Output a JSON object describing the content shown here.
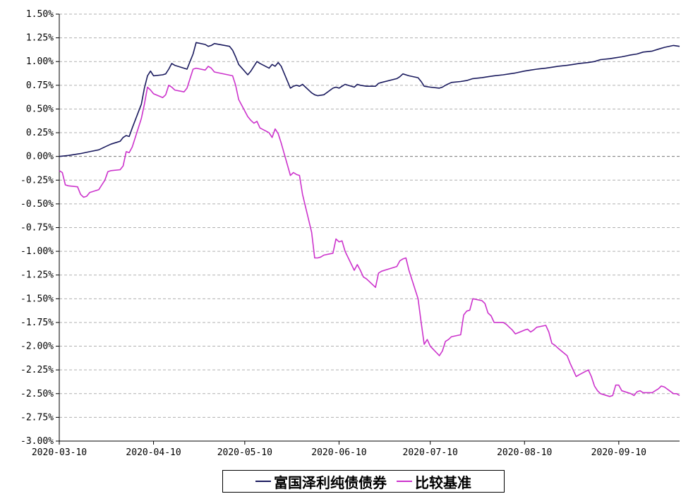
{
  "chart_data": {
    "type": "line",
    "title": "",
    "xlabel": "",
    "ylabel": "",
    "x_start": "2020-03-10",
    "x_end": "2020-09-30",
    "ylim": [
      -3.0,
      1.5
    ],
    "yticks": [
      1.5,
      1.25,
      1.0,
      0.75,
      0.5,
      0.25,
      0.0,
      -0.25,
      -0.5,
      -0.75,
      -1.0,
      -1.25,
      -1.5,
      -1.75,
      -2.0,
      -2.25,
      -2.5,
      -2.75,
      -3.0
    ],
    "ytick_labels": [
      "1.50%",
      "1.25%",
      "1.00%",
      "0.75%",
      "0.50%",
      "0.25%",
      "0.00%",
      "-0.25%",
      "-0.50%",
      "-0.75%",
      "-1.00%",
      "-1.25%",
      "-1.50%",
      "-1.75%",
      "-2.00%",
      "-2.25%",
      "-2.50%",
      "-2.75%",
      "-3.00%"
    ],
    "xticks": [
      "2020-03-10",
      "2020-04-10",
      "2020-05-10",
      "2020-06-10",
      "2020-07-10",
      "2020-08-10",
      "2020-09-10"
    ],
    "grid": true,
    "legend_position": "bottom",
    "series": [
      {
        "name": "富国泽利纯债债券",
        "color": "#1a1a5e",
        "points": [
          [
            "2020-03-10",
            0.0
          ],
          [
            "2020-03-13",
            0.01
          ],
          [
            "2020-03-17",
            0.03
          ],
          [
            "2020-03-20",
            0.05
          ],
          [
            "2020-03-23",
            0.07
          ],
          [
            "2020-03-25",
            0.1
          ],
          [
            "2020-03-27",
            0.13
          ],
          [
            "2020-03-30",
            0.16
          ],
          [
            "2020-03-31",
            0.2
          ],
          [
            "2020-04-01",
            0.22
          ],
          [
            "2020-04-02",
            0.21
          ],
          [
            "2020-04-03",
            0.3
          ],
          [
            "2020-04-06",
            0.55
          ],
          [
            "2020-04-07",
            0.72
          ],
          [
            "2020-04-08",
            0.85
          ],
          [
            "2020-04-09",
            0.9
          ],
          [
            "2020-04-10",
            0.85
          ],
          [
            "2020-04-13",
            0.86
          ],
          [
            "2020-04-14",
            0.87
          ],
          [
            "2020-04-15",
            0.92
          ],
          [
            "2020-04-16",
            0.98
          ],
          [
            "2020-04-17",
            0.96
          ],
          [
            "2020-04-20",
            0.93
          ],
          [
            "2020-04-21",
            0.92
          ],
          [
            "2020-04-22",
            1.0
          ],
          [
            "2020-04-23",
            1.08
          ],
          [
            "2020-04-24",
            1.2
          ],
          [
            "2020-04-27",
            1.18
          ],
          [
            "2020-04-28",
            1.16
          ],
          [
            "2020-04-29",
            1.17
          ],
          [
            "2020-04-30",
            1.19
          ],
          [
            "2020-05-05",
            1.16
          ],
          [
            "2020-05-06",
            1.12
          ],
          [
            "2020-05-07",
            1.05
          ],
          [
            "2020-05-08",
            0.97
          ],
          [
            "2020-05-11",
            0.86
          ],
          [
            "2020-05-12",
            0.9
          ],
          [
            "2020-05-13",
            0.95
          ],
          [
            "2020-05-14",
            1.0
          ],
          [
            "2020-05-15",
            0.98
          ],
          [
            "2020-05-18",
            0.93
          ],
          [
            "2020-05-19",
            0.97
          ],
          [
            "2020-05-20",
            0.95
          ],
          [
            "2020-05-21",
            0.99
          ],
          [
            "2020-05-22",
            0.95
          ],
          [
            "2020-05-25",
            0.72
          ],
          [
            "2020-05-26",
            0.74
          ],
          [
            "2020-05-27",
            0.75
          ],
          [
            "2020-05-28",
            0.74
          ],
          [
            "2020-05-29",
            0.76
          ],
          [
            "2020-06-01",
            0.67
          ],
          [
            "2020-06-02",
            0.65
          ],
          [
            "2020-06-03",
            0.64
          ],
          [
            "2020-06-05",
            0.65
          ],
          [
            "2020-06-08",
            0.72
          ],
          [
            "2020-06-09",
            0.73
          ],
          [
            "2020-06-10",
            0.72
          ],
          [
            "2020-06-11",
            0.74
          ],
          [
            "2020-06-12",
            0.76
          ],
          [
            "2020-06-15",
            0.73
          ],
          [
            "2020-06-16",
            0.76
          ],
          [
            "2020-06-17",
            0.75
          ],
          [
            "2020-06-19",
            0.74
          ],
          [
            "2020-06-22",
            0.74
          ],
          [
            "2020-06-23",
            0.77
          ],
          [
            "2020-06-24",
            0.78
          ],
          [
            "2020-06-29",
            0.82
          ],
          [
            "2020-06-30",
            0.84
          ],
          [
            "2020-07-01",
            0.87
          ],
          [
            "2020-07-03",
            0.85
          ],
          [
            "2020-07-06",
            0.83
          ],
          [
            "2020-07-07",
            0.79
          ],
          [
            "2020-07-08",
            0.74
          ],
          [
            "2020-07-10",
            0.73
          ],
          [
            "2020-07-13",
            0.72
          ],
          [
            "2020-07-14",
            0.73
          ],
          [
            "2020-07-15",
            0.75
          ],
          [
            "2020-07-17",
            0.78
          ],
          [
            "2020-07-20",
            0.79
          ],
          [
            "2020-07-22",
            0.8
          ],
          [
            "2020-07-24",
            0.82
          ],
          [
            "2020-07-27",
            0.83
          ],
          [
            "2020-07-29",
            0.84
          ],
          [
            "2020-07-31",
            0.85
          ],
          [
            "2020-08-03",
            0.86
          ],
          [
            "2020-08-05",
            0.87
          ],
          [
            "2020-08-07",
            0.88
          ],
          [
            "2020-08-10",
            0.9
          ],
          [
            "2020-08-12",
            0.91
          ],
          [
            "2020-08-14",
            0.92
          ],
          [
            "2020-08-17",
            0.93
          ],
          [
            "2020-08-19",
            0.94
          ],
          [
            "2020-08-21",
            0.95
          ],
          [
            "2020-08-24",
            0.96
          ],
          [
            "2020-08-26",
            0.97
          ],
          [
            "2020-08-28",
            0.98
          ],
          [
            "2020-08-31",
            0.99
          ],
          [
            "2020-09-02",
            1.0
          ],
          [
            "2020-09-04",
            1.02
          ],
          [
            "2020-09-07",
            1.03
          ],
          [
            "2020-09-09",
            1.04
          ],
          [
            "2020-09-11",
            1.05
          ],
          [
            "2020-09-14",
            1.07
          ],
          [
            "2020-09-16",
            1.08
          ],
          [
            "2020-09-18",
            1.1
          ],
          [
            "2020-09-21",
            1.11
          ],
          [
            "2020-09-23",
            1.13
          ],
          [
            "2020-09-25",
            1.15
          ],
          [
            "2020-09-28",
            1.17
          ],
          [
            "2020-09-30",
            1.16
          ]
        ]
      },
      {
        "name": "比较基准",
        "color": "#cc33cc",
        "points": [
          [
            "2020-03-10",
            -0.15
          ],
          [
            "2020-03-11",
            -0.17
          ],
          [
            "2020-03-12",
            -0.3
          ],
          [
            "2020-03-13",
            -0.31
          ],
          [
            "2020-03-16",
            -0.32
          ],
          [
            "2020-03-17",
            -0.4
          ],
          [
            "2020-03-18",
            -0.43
          ],
          [
            "2020-03-19",
            -0.42
          ],
          [
            "2020-03-20",
            -0.38
          ],
          [
            "2020-03-23",
            -0.35
          ],
          [
            "2020-03-24",
            -0.3
          ],
          [
            "2020-03-25",
            -0.25
          ],
          [
            "2020-03-26",
            -0.16
          ],
          [
            "2020-03-27",
            -0.15
          ],
          [
            "2020-03-30",
            -0.14
          ],
          [
            "2020-03-31",
            -0.1
          ],
          [
            "2020-04-01",
            0.05
          ],
          [
            "2020-04-02",
            0.04
          ],
          [
            "2020-04-03",
            0.1
          ],
          [
            "2020-04-06",
            0.4
          ],
          [
            "2020-04-07",
            0.55
          ],
          [
            "2020-04-08",
            0.73
          ],
          [
            "2020-04-09",
            0.7
          ],
          [
            "2020-04-10",
            0.66
          ],
          [
            "2020-04-13",
            0.62
          ],
          [
            "2020-04-14",
            0.65
          ],
          [
            "2020-04-15",
            0.75
          ],
          [
            "2020-04-16",
            0.73
          ],
          [
            "2020-04-17",
            0.7
          ],
          [
            "2020-04-20",
            0.68
          ],
          [
            "2020-04-21",
            0.72
          ],
          [
            "2020-04-22",
            0.82
          ],
          [
            "2020-04-23",
            0.92
          ],
          [
            "2020-04-24",
            0.93
          ],
          [
            "2020-04-27",
            0.91
          ],
          [
            "2020-04-28",
            0.95
          ],
          [
            "2020-04-29",
            0.93
          ],
          [
            "2020-04-30",
            0.89
          ],
          [
            "2020-05-06",
            0.85
          ],
          [
            "2020-05-07",
            0.75
          ],
          [
            "2020-05-08",
            0.6
          ],
          [
            "2020-05-11",
            0.42
          ],
          [
            "2020-05-12",
            0.38
          ],
          [
            "2020-05-13",
            0.35
          ],
          [
            "2020-05-14",
            0.37
          ],
          [
            "2020-05-15",
            0.3
          ],
          [
            "2020-05-18",
            0.25
          ],
          [
            "2020-05-19",
            0.2
          ],
          [
            "2020-05-20",
            0.29
          ],
          [
            "2020-05-21",
            0.24
          ],
          [
            "2020-05-22",
            0.14
          ],
          [
            "2020-05-25",
            -0.2
          ],
          [
            "2020-05-26",
            -0.17
          ],
          [
            "2020-05-27",
            -0.19
          ],
          [
            "2020-05-28",
            -0.2
          ],
          [
            "2020-05-29",
            -0.4
          ],
          [
            "2020-06-01",
            -0.8
          ],
          [
            "2020-06-02",
            -1.07
          ],
          [
            "2020-06-03",
            -1.07
          ],
          [
            "2020-06-04",
            -1.06
          ],
          [
            "2020-06-05",
            -1.04
          ],
          [
            "2020-06-08",
            -1.02
          ],
          [
            "2020-06-09",
            -0.87
          ],
          [
            "2020-06-10",
            -0.9
          ],
          [
            "2020-06-11",
            -0.89
          ],
          [
            "2020-06-12",
            -1.0
          ],
          [
            "2020-06-15",
            -1.2
          ],
          [
            "2020-06-16",
            -1.14
          ],
          [
            "2020-06-17",
            -1.2
          ],
          [
            "2020-06-18",
            -1.27
          ],
          [
            "2020-06-19",
            -1.29
          ],
          [
            "2020-06-22",
            -1.38
          ],
          [
            "2020-06-23",
            -1.23
          ],
          [
            "2020-06-24",
            -1.21
          ],
          [
            "2020-06-29",
            -1.16
          ],
          [
            "2020-06-30",
            -1.1
          ],
          [
            "2020-07-01",
            -1.08
          ],
          [
            "2020-07-02",
            -1.07
          ],
          [
            "2020-07-03",
            -1.2
          ],
          [
            "2020-07-06",
            -1.5
          ],
          [
            "2020-07-07",
            -1.75
          ],
          [
            "2020-07-08",
            -1.98
          ],
          [
            "2020-07-09",
            -1.93
          ],
          [
            "2020-07-10",
            -2.0
          ],
          [
            "2020-07-13",
            -2.1
          ],
          [
            "2020-07-14",
            -2.05
          ],
          [
            "2020-07-15",
            -1.95
          ],
          [
            "2020-07-16",
            -1.93
          ],
          [
            "2020-07-17",
            -1.9
          ],
          [
            "2020-07-20",
            -1.88
          ],
          [
            "2020-07-21",
            -1.67
          ],
          [
            "2020-07-22",
            -1.63
          ],
          [
            "2020-07-23",
            -1.62
          ],
          [
            "2020-07-24",
            -1.5
          ],
          [
            "2020-07-27",
            -1.52
          ],
          [
            "2020-07-28",
            -1.55
          ],
          [
            "2020-07-29",
            -1.65
          ],
          [
            "2020-07-30",
            -1.68
          ],
          [
            "2020-07-31",
            -1.75
          ],
          [
            "2020-08-03",
            -1.75
          ],
          [
            "2020-08-04",
            -1.77
          ],
          [
            "2020-08-05",
            -1.8
          ],
          [
            "2020-08-06",
            -1.83
          ],
          [
            "2020-08-07",
            -1.87
          ],
          [
            "2020-08-10",
            -1.83
          ],
          [
            "2020-08-11",
            -1.82
          ],
          [
            "2020-08-12",
            -1.85
          ],
          [
            "2020-08-13",
            -1.83
          ],
          [
            "2020-08-14",
            -1.8
          ],
          [
            "2020-08-17",
            -1.78
          ],
          [
            "2020-08-18",
            -1.85
          ],
          [
            "2020-08-19",
            -1.97
          ],
          [
            "2020-08-20",
            -1.99
          ],
          [
            "2020-08-21",
            -2.02
          ],
          [
            "2020-08-24",
            -2.1
          ],
          [
            "2020-08-25",
            -2.18
          ],
          [
            "2020-08-26",
            -2.25
          ],
          [
            "2020-08-27",
            -2.32
          ],
          [
            "2020-08-28",
            -2.3
          ],
          [
            "2020-08-31",
            -2.25
          ],
          [
            "2020-09-01",
            -2.32
          ],
          [
            "2020-09-02",
            -2.42
          ],
          [
            "2020-09-03",
            -2.47
          ],
          [
            "2020-09-04",
            -2.5
          ],
          [
            "2020-09-07",
            -2.53
          ],
          [
            "2020-09-08",
            -2.52
          ],
          [
            "2020-09-09",
            -2.41
          ],
          [
            "2020-09-10",
            -2.41
          ],
          [
            "2020-09-11",
            -2.47
          ],
          [
            "2020-09-14",
            -2.5
          ],
          [
            "2020-09-15",
            -2.52
          ],
          [
            "2020-09-16",
            -2.48
          ],
          [
            "2020-09-17",
            -2.47
          ],
          [
            "2020-09-18",
            -2.49
          ],
          [
            "2020-09-21",
            -2.49
          ],
          [
            "2020-09-22",
            -2.47
          ],
          [
            "2020-09-23",
            -2.45
          ],
          [
            "2020-09-24",
            -2.42
          ],
          [
            "2020-09-25",
            -2.43
          ],
          [
            "2020-09-28",
            -2.5
          ],
          [
            "2020-09-29",
            -2.5
          ],
          [
            "2020-09-30",
            -2.52
          ]
        ]
      }
    ]
  },
  "legend": {
    "series1_label": "富国泽利纯债债券",
    "series2_label": "比较基准"
  }
}
